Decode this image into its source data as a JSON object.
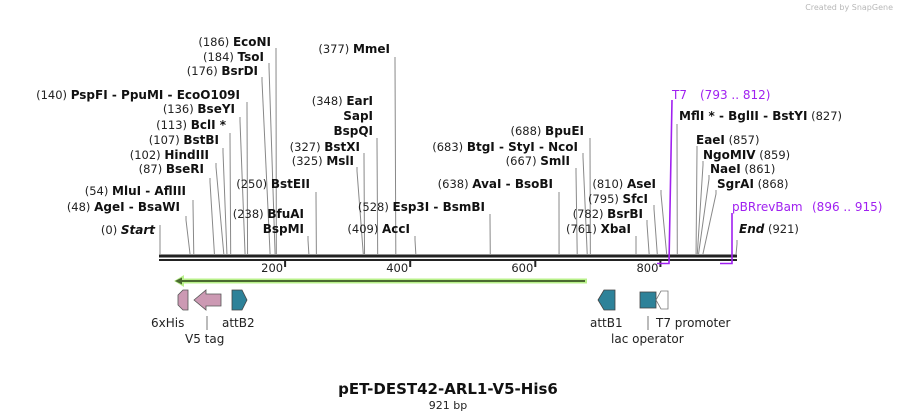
{
  "watermark": "Created by SnapGene",
  "title": "pET-DEST42-ARL1-V5-His6",
  "length_label": "921 bp",
  "sequence_length": 921,
  "colors": {
    "primer": "#a020f0",
    "orf_fill": "#b8f08a",
    "orf_line": "#4a6a30",
    "tag": "#cc99b3",
    "att": "#2e8299",
    "backbone": "#222222"
  },
  "ticks": [
    {
      "value": 200,
      "label": "200"
    },
    {
      "value": 400,
      "label": "400"
    },
    {
      "value": 600,
      "label": "600"
    },
    {
      "value": 800,
      "label": "800"
    }
  ],
  "enzymes": [
    {
      "pos": 0,
      "pos_label": "(0)",
      "names": [
        "Start"
      ],
      "italic": true
    },
    {
      "pos": 48,
      "pos_label": "(48)",
      "names": [
        "AgeI",
        "BsaWI"
      ]
    },
    {
      "pos": 54,
      "pos_label": "(54)",
      "names": [
        "MluI",
        "AflIII"
      ]
    },
    {
      "pos": 87,
      "pos_label": "(87)",
      "names": [
        "BseRI"
      ]
    },
    {
      "pos": 102,
      "pos_label": "(102)",
      "names": [
        "HindIII"
      ]
    },
    {
      "pos": 107,
      "pos_label": "(107)",
      "names": [
        "BstBI"
      ]
    },
    {
      "pos": 113,
      "pos_label": "(113)",
      "names": [
        "BclI *"
      ]
    },
    {
      "pos": 136,
      "pos_label": "(136)",
      "names": [
        "BseYI"
      ]
    },
    {
      "pos": 140,
      "pos_label": "(140)",
      "names": [
        "PspFI",
        "PpuMI",
        "EcoO109I"
      ]
    },
    {
      "pos": 176,
      "pos_label": "(176)",
      "names": [
        "BsrDI"
      ]
    },
    {
      "pos": 184,
      "pos_label": "(184)",
      "names": [
        "TsoI"
      ]
    },
    {
      "pos": 186,
      "pos_label": "(186)",
      "names": [
        "EcoNI"
      ]
    },
    {
      "pos": 238,
      "pos_label": "(238)",
      "names": [
        "BfuAI",
        "BspMI"
      ],
      "stacked": true
    },
    {
      "pos": 250,
      "pos_label": "(250)",
      "names": [
        "BstEII"
      ]
    },
    {
      "pos": 325,
      "pos_label": "(325)",
      "names": [
        "MslI"
      ]
    },
    {
      "pos": 327,
      "pos_label": "(327)",
      "names": [
        "BstXI"
      ]
    },
    {
      "pos": 348,
      "pos_label": "(348)",
      "names": [
        "EarI",
        "SapI",
        "BspQI"
      ],
      "stacked": true
    },
    {
      "pos": 377,
      "pos_label": "(377)",
      "names": [
        "MmeI"
      ]
    },
    {
      "pos": 409,
      "pos_label": "(409)",
      "names": [
        "AccI"
      ]
    },
    {
      "pos": 528,
      "pos_label": "(528)",
      "names": [
        "Esp3I",
        "BsmBI"
      ]
    },
    {
      "pos": 638,
      "pos_label": "(638)",
      "names": [
        "AvaI",
        "BsoBI"
      ]
    },
    {
      "pos": 667,
      "pos_label": "(667)",
      "names": [
        "SmlI"
      ]
    },
    {
      "pos": 683,
      "pos_label": "(683)",
      "names": [
        "BtgI",
        "StyI",
        "NcoI"
      ]
    },
    {
      "pos": 688,
      "pos_label": "(688)",
      "names": [
        "BpuEI"
      ]
    },
    {
      "pos": 761,
      "pos_label": "(761)",
      "names": [
        "XbaI"
      ]
    },
    {
      "pos": 782,
      "pos_label": "(782)",
      "names": [
        "BsrBI"
      ]
    },
    {
      "pos": 795,
      "pos_label": "(795)",
      "names": [
        "SfcI"
      ]
    },
    {
      "pos": 810,
      "pos_label": "(810)",
      "names": [
        "AseI"
      ]
    },
    {
      "pos": 827,
      "pos_label": "(827)",
      "names": [
        "MflI *",
        "BglII",
        "BstYI"
      ]
    },
    {
      "pos": 857,
      "pos_label": "(857)",
      "names": [
        "EaeI"
      ]
    },
    {
      "pos": 859,
      "pos_label": "(859)",
      "names": [
        "NgoMIV"
      ]
    },
    {
      "pos": 861,
      "pos_label": "(861)",
      "names": [
        "NaeI"
      ]
    },
    {
      "pos": 868,
      "pos_label": "(868)",
      "names": [
        "SgrAI"
      ]
    },
    {
      "pos": 921,
      "pos_label": "(921)",
      "names": [
        "End"
      ],
      "italic": true
    }
  ],
  "primers": [
    {
      "name": "T7",
      "range": "(793 .. 812)"
    },
    {
      "name": "pBRrevBam",
      "range": "(896 .. 915)"
    }
  ],
  "features": [
    {
      "name": "6xHis"
    },
    {
      "name": "V5 tag"
    },
    {
      "name": "attB2"
    },
    {
      "name": "attB1"
    },
    {
      "name": "lac operator"
    },
    {
      "name": "T7 promoter"
    }
  ]
}
